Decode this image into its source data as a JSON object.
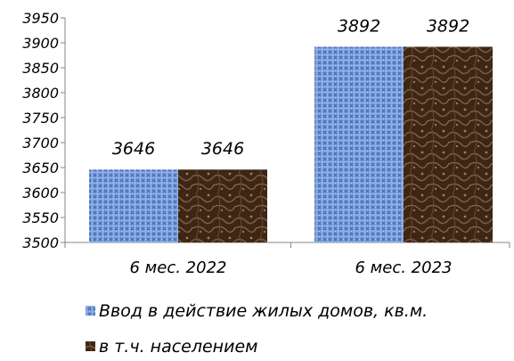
{
  "chart_data": {
    "type": "bar",
    "categories": [
      "6 мес. 2022",
      "6 мес. 2023"
    ],
    "series": [
      {
        "name": "Ввод в действие жилых домов, кв.м.",
        "values": [
          3646,
          3892
        ],
        "color": "#6f95d6"
      },
      {
        "name": "в т.ч. населением",
        "values": [
          3646,
          3892
        ],
        "color": "#4a3020"
      }
    ],
    "data_labels": [
      [
        "3646",
        "3892"
      ],
      [
        "3646",
        "3892"
      ]
    ],
    "ylim": [
      3500,
      3950
    ],
    "y_ticks": [
      3500,
      3550,
      3600,
      3650,
      3700,
      3750,
      3800,
      3850,
      3900,
      3950
    ],
    "y_tick_labels": [
      "3500",
      "3550",
      "3600",
      "3650",
      "3700",
      "3750",
      "3800",
      "3850",
      "3900",
      "3950"
    ],
    "grid": false,
    "legend_position": "bottom",
    "title": "",
    "xlabel": "",
    "ylabel": ""
  }
}
